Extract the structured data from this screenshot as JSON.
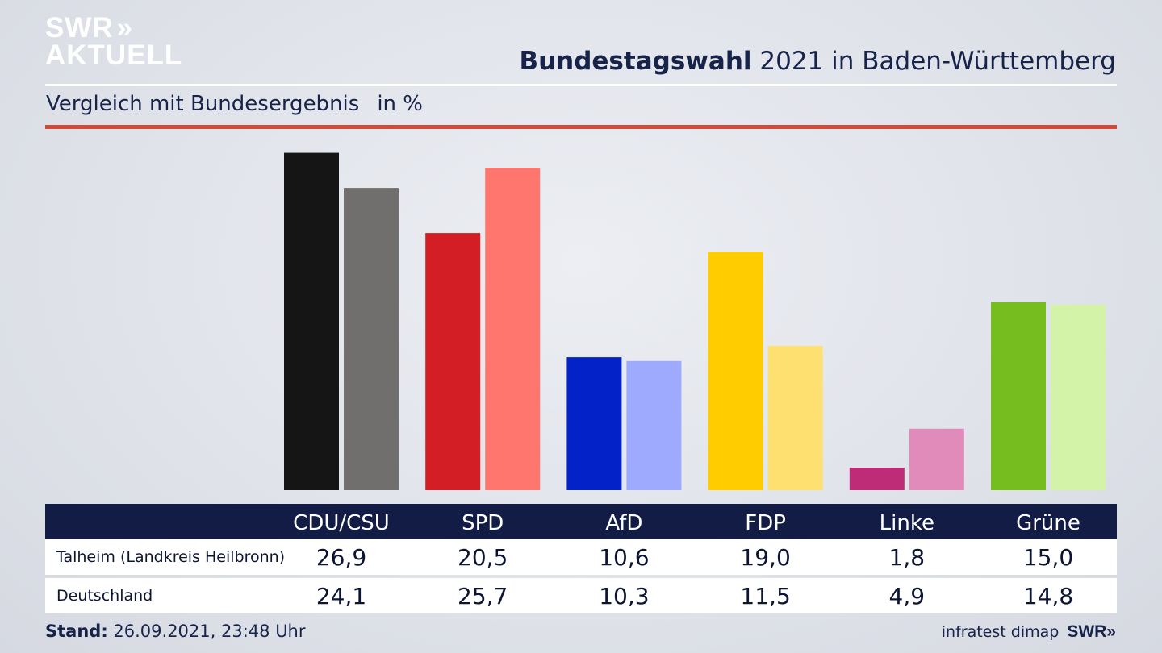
{
  "header": {
    "logo_line1": "SWR",
    "logo_chevrons": "»",
    "logo_line2": "AKTUELL",
    "title_bold": "Bundestagswahl",
    "title_rest": "2021 in Baden-Württemberg",
    "subtitle": "Vergleich mit Bundesergebnis",
    "unit": "in %"
  },
  "chart_data": {
    "type": "bar",
    "title": "Bundestagswahl 2021 in Baden-Württemberg",
    "subtitle": "Vergleich mit Bundesergebnis in %",
    "categories": [
      "CDU/CSU",
      "SPD",
      "AfD",
      "FDP",
      "Linke",
      "Grüne"
    ],
    "series": [
      {
        "name": "Talheim (Landkreis Heilbronn)",
        "values": [
          26.9,
          20.5,
          10.6,
          19.0,
          1.8,
          15.0
        ],
        "labels": [
          "26,9",
          "20,5",
          "10,6",
          "19,0",
          "1,8",
          "15,0"
        ],
        "colors": [
          "#151515",
          "#d21e24",
          "#0322c8",
          "#ffcc00",
          "#be2c78",
          "#76bd20"
        ]
      },
      {
        "name": "Deutschland",
        "values": [
          24.1,
          25.7,
          10.3,
          11.5,
          4.9,
          14.8
        ],
        "labels": [
          "24,1",
          "25,7",
          "10,3",
          "11,5",
          "4,9",
          "14,8"
        ],
        "colors": [
          "#706f6d",
          "#ff766e",
          "#9eaafe",
          "#fde06f",
          "#e08bba",
          "#d3f4a8"
        ]
      }
    ],
    "ylim": [
      0,
      27
    ],
    "grid": false,
    "legend": "table below chart"
  },
  "footer": {
    "stand_label": "Stand:",
    "stand_value": "26.09.2021, 23:48 Uhr",
    "source": "infratest dimap",
    "brand": "SWR»"
  }
}
